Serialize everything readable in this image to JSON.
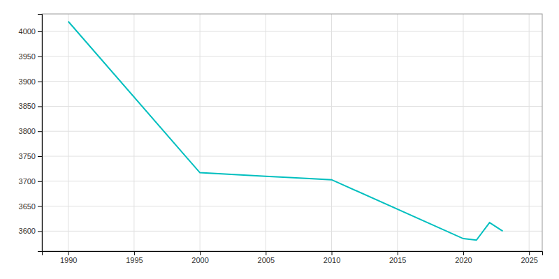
{
  "chart_data": {
    "type": "line",
    "x": [
      1990,
      2000,
      2005,
      2010,
      2020,
      2021,
      2022,
      2023
    ],
    "values": [
      4020,
      3717,
      3710,
      3703,
      3585,
      3582,
      3617,
      3600
    ],
    "color": "#00BFBF",
    "xlim": [
      1988,
      2026
    ],
    "ylim": [
      3560,
      4035
    ],
    "xticks": [
      1990,
      1995,
      2000,
      2005,
      2010,
      2015,
      2020,
      2025
    ],
    "yticks": [
      3600,
      3650,
      3700,
      3750,
      3800,
      3850,
      3900,
      3950,
      4000
    ],
    "grid": true
  }
}
